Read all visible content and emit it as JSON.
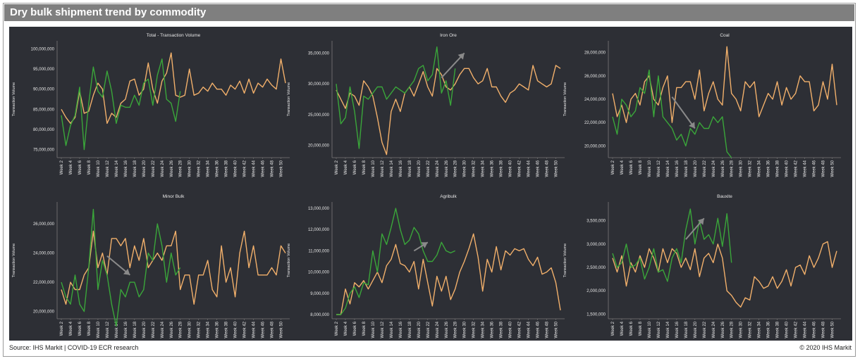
{
  "header": {
    "title": "Dry bulk shipment trend by commodity"
  },
  "footer": {
    "source": "Source: IHS Markit | COVID-19 ECR research",
    "copyright": "© 2020 IHS Markit"
  },
  "colors": {
    "series_a": "#f2b06b",
    "series_b": "#3aa63a",
    "arrow": "#8a8a8a",
    "panel": "#2d2f35",
    "axis_text": "#e6e6e6"
  },
  "x_tick_labels": [
    "Week 2",
    "Week 4",
    "Week 6",
    "Week 8",
    "Week 10",
    "Week 12",
    "Week 14",
    "Week 16",
    "Week 18",
    "Week 20",
    "Week 22",
    "Week 24",
    "Week 26",
    "Week 28",
    "Week 30",
    "Week 32",
    "Week 34",
    "Week 36",
    "Week 38",
    "Week 40",
    "Week 42",
    "Week 44",
    "Week 46",
    "Week 48",
    "Week 50"
  ],
  "chart_data": [
    {
      "type": "line",
      "title": "Total - Transaction Volume",
      "ylabel": "Transaction Volume",
      "ylim": [
        73000000,
        102000000
      ],
      "yticks": [
        75000000,
        80000000,
        85000000,
        90000000,
        95000000,
        100000000
      ],
      "ytick_labels": [
        "75,000,000",
        "80,000,000",
        "85,000,000",
        "90,000,000",
        "95,000,000",
        "100,000,000"
      ],
      "arrow": null,
      "series": [
        {
          "values": [
            85000000,
            83000000,
            81500000,
            83000000,
            89500000,
            84000000,
            84500000,
            88500000,
            91500000,
            90000000,
            81500000,
            84000000,
            83000000,
            86500000,
            87500000,
            92000000,
            92500000,
            88500000,
            90000000,
            96500000,
            90000000,
            86500000,
            92000000,
            94000000,
            99000000,
            88500000,
            88000000,
            88500000,
            95000000,
            88500000,
            89000000,
            90500000,
            89500000,
            91500000,
            90000000,
            90000000,
            88500000,
            91000000,
            90000000,
            92000000,
            89000000,
            92500000,
            89000000,
            91500000,
            90500000,
            92500000,
            91000000,
            90000000,
            97500000,
            91500000
          ]
        },
        {
          "values": [
            83500000,
            76000000,
            81000000,
            83500000,
            90500000,
            75000000,
            86500000,
            95500000,
            89500000,
            88000000,
            94500000,
            89500000,
            81500000,
            86000000,
            85500000,
            85500000,
            88500000,
            86000000,
            91500000,
            92500000,
            86000000,
            93500000,
            97500000,
            87500000,
            86500000,
            82000000,
            89500000
          ]
        }
      ]
    },
    {
      "type": "line",
      "title": "Iron Ore",
      "ylabel": "Transaction Volume",
      "ylim": [
        18000000,
        37000000
      ],
      "yticks": [
        20000000,
        25000000,
        30000000,
        35000000
      ],
      "ytick_labels": [
        "20,000,000",
        "25,000,000",
        "30,000,000",
        "35,000,000"
      ],
      "arrow": {
        "from": [
          23,
          31000000
        ],
        "to": [
          28,
          35000000
        ]
      },
      "series": [
        {
          "values": [
            29000000,
            27500000,
            26000000,
            28500000,
            28000000,
            26500000,
            30500000,
            29500000,
            28000000,
            24500000,
            20500000,
            18500000,
            25500000,
            27500000,
            25500000,
            28500000,
            29500000,
            28000000,
            30000000,
            32000000,
            29500000,
            28000000,
            32500000,
            31500000,
            29500000,
            29000000,
            30000000,
            31500000,
            32500000,
            32500000,
            31000000,
            30000000,
            30500000,
            32500000,
            29500000,
            29500000,
            28000000,
            27000000,
            28500000,
            29000000,
            30000000,
            29500000,
            29000000,
            33000000,
            30500000,
            30000000,
            29500000,
            30000000,
            33000000,
            32500000
          ]
        },
        {
          "values": [
            30000000,
            23500000,
            24500000,
            29500000,
            25500000,
            19500000,
            28000000,
            27500000,
            28500000,
            29500000,
            29500000,
            27500000,
            28500000,
            29500000,
            29000000,
            28500000,
            29500000,
            30500000,
            32500000,
            33000000,
            30500000,
            31500000,
            36000000,
            28500000,
            30500000,
            26500000,
            32500000
          ]
        }
      ]
    },
    {
      "type": "line",
      "title": "Coal",
      "ylabel": "Transaction Volume",
      "ylim": [
        19000000,
        29000000
      ],
      "yticks": [
        20000000,
        22000000,
        24000000,
        26000000,
        28000000
      ],
      "ytick_labels": [
        "20,000,000",
        "22,000,000",
        "24,000,000",
        "26,000,000",
        "28,000,000"
      ],
      "arrow": {
        "from": [
          13,
          24200000
        ],
        "to": [
          18,
          21500000
        ]
      },
      "series": [
        {
          "values": [
            24500000,
            22500000,
            23500000,
            22000000,
            24000000,
            24500000,
            23500000,
            25500000,
            26000000,
            24000000,
            23500000,
            25000000,
            26000000,
            22000000,
            25000000,
            25000000,
            25500000,
            25500000,
            24000000,
            26500000,
            23000000,
            24500000,
            25500000,
            24000000,
            23500000,
            28500000,
            24500000,
            24000000,
            23000000,
            25500000,
            25000000,
            25500000,
            22500000,
            23500000,
            24500000,
            24000000,
            25500000,
            23500000,
            25000000,
            24000000,
            24500000,
            26000000,
            25500000,
            25500000,
            23000000,
            23500000,
            25500000,
            24000000,
            27000000,
            23500000
          ]
        },
        {
          "values": [
            22500000,
            21000000,
            24000000,
            23500000,
            22500000,
            23000000,
            25000000,
            24500000,
            26500000,
            22500000,
            26000000,
            22500000,
            22000000,
            21500000,
            20500000,
            21000000,
            20000000,
            21500000,
            21000000,
            22000000,
            21500000,
            21500000,
            22500000,
            22000000,
            22500000,
            19500000,
            19000000
          ]
        }
      ]
    },
    {
      "type": "line",
      "title": "Minor Bulk",
      "ylabel": "Transaction Volume",
      "ylim": [
        19500000,
        27500000
      ],
      "yticks": [
        20000000,
        22000000,
        24000000,
        26000000
      ],
      "ytick_labels": [
        "20,000,000",
        "22,000,000",
        "24,000,000",
        "26,000,000"
      ],
      "arrow": {
        "from": [
          10,
          23800000
        ],
        "to": [
          15,
          22500000
        ]
      },
      "series": [
        {
          "values": [
            21500000,
            20500000,
            22000000,
            21500000,
            21500000,
            22500000,
            23000000,
            25500000,
            23000000,
            24000000,
            22500000,
            25000000,
            25000000,
            24500000,
            25000000,
            23000000,
            24500000,
            23500000,
            25000000,
            23000000,
            23500000,
            24000000,
            23500000,
            24500000,
            24500000,
            25500000,
            21500000,
            22500000,
            22500000,
            20500000,
            22500000,
            22500000,
            23500000,
            21500000,
            21000000,
            24500000,
            22000000,
            23000000,
            21000000,
            24000000,
            25500000,
            23000000,
            24500000,
            22500000,
            22500000,
            22500000,
            23000000,
            22500000,
            24500000,
            24000000
          ]
        },
        {
          "values": [
            22000000,
            21000000,
            20500000,
            22500000,
            20500000,
            20000000,
            23000000,
            27000000,
            21500000,
            23500000,
            22500000,
            20500000,
            19000000,
            21500000,
            21000000,
            22000000,
            22000000,
            21000000,
            21500000,
            24000000,
            23500000,
            26000000,
            24500000,
            22000000,
            24000000,
            22500000,
            23000000
          ]
        }
      ]
    },
    {
      "type": "line",
      "title": "Agribulk",
      "ylabel": "Transaction Volume",
      "ylim": [
        7800000,
        13300000
      ],
      "yticks": [
        8000000,
        9000000,
        10000000,
        11000000,
        12000000,
        13000000
      ],
      "ytick_labels": [
        "8,000,000",
        "9,000,000",
        "10,000,000",
        "11,000,000",
        "12,000,000",
        "13,000,000"
      ],
      "arrow": {
        "from": [
          17,
          11000000
        ],
        "to": [
          20,
          11400000
        ]
      },
      "series": [
        {
          "values": [
            8000000,
            8000000,
            9200000,
            8500000,
            9500000,
            9300000,
            9600000,
            9200000,
            9600000,
            10000000,
            9500000,
            10300000,
            10600000,
            11300000,
            10400000,
            10300000,
            10000000,
            10500000,
            9200000,
            10600000,
            9500000,
            8400000,
            9800000,
            9100000,
            9800000,
            8700000,
            9200000,
            10000000,
            10500000,
            11100000,
            11800000,
            10700000,
            9100000,
            10600000,
            10000000,
            11200000,
            10100000,
            11000000,
            10800000,
            11100000,
            11000000,
            11100000,
            10600000,
            10300000,
            10700000,
            9900000,
            10000000,
            10200000,
            9500000,
            8200000
          ]
        },
        {
          "values": [
            8000000,
            8000000,
            8300000,
            9000000,
            9300000,
            8800000,
            9500000,
            9400000,
            11000000,
            10000000,
            11800000,
            11300000,
            12100000,
            13000000,
            12000000,
            11300000,
            11500000,
            12100000,
            11800000,
            11000000,
            10500000,
            10500000,
            10800000,
            11400000,
            11000000,
            10900000,
            11000000
          ]
        }
      ]
    },
    {
      "type": "line",
      "title": "Bauxite",
      "ylabel": "Transaction Volume",
      "ylim": [
        1400000,
        3900000
      ],
      "yticks": [
        1500000,
        2000000,
        2500000,
        3000000,
        3500000
      ],
      "ytick_labels": [
        "1,500,000",
        "2,000,000",
        "2,500,000",
        "3,000,000",
        "3,500,000"
      ],
      "arrow": {
        "from": [
          16,
          3100000
        ],
        "to": [
          20,
          3550000
        ]
      },
      "series": [
        {
          "values": [
            2700000,
            2400000,
            2750000,
            2100000,
            2600000,
            2400000,
            2750000,
            2500000,
            2900000,
            2700000,
            2400000,
            2900000,
            2600000,
            2900000,
            2800000,
            2500000,
            2700000,
            2450000,
            2900000,
            2300000,
            2700000,
            2800000,
            2600000,
            3000000,
            2700000,
            2000000,
            1900000,
            1750000,
            1650000,
            1850000,
            1800000,
            2300000,
            2200000,
            2050000,
            2100000,
            2300000,
            2050000,
            2200000,
            2450000,
            2100000,
            2500000,
            2550000,
            2350000,
            2750000,
            2500000,
            2700000,
            3000000,
            3050000,
            2500000,
            2850000
          ]
        },
        {
          "values": [
            2800000,
            2500000,
            2600000,
            3000000,
            2500000,
            2550000,
            2700000,
            2250000,
            2500000,
            2900000,
            2400000,
            2450000,
            2200000,
            2700000,
            2900000,
            2600000,
            3300000,
            3750000,
            3000000,
            3500000,
            3100000,
            3200000,
            3000000,
            3550000,
            2950000,
            3650000,
            2600000
          ]
        }
      ]
    }
  ]
}
